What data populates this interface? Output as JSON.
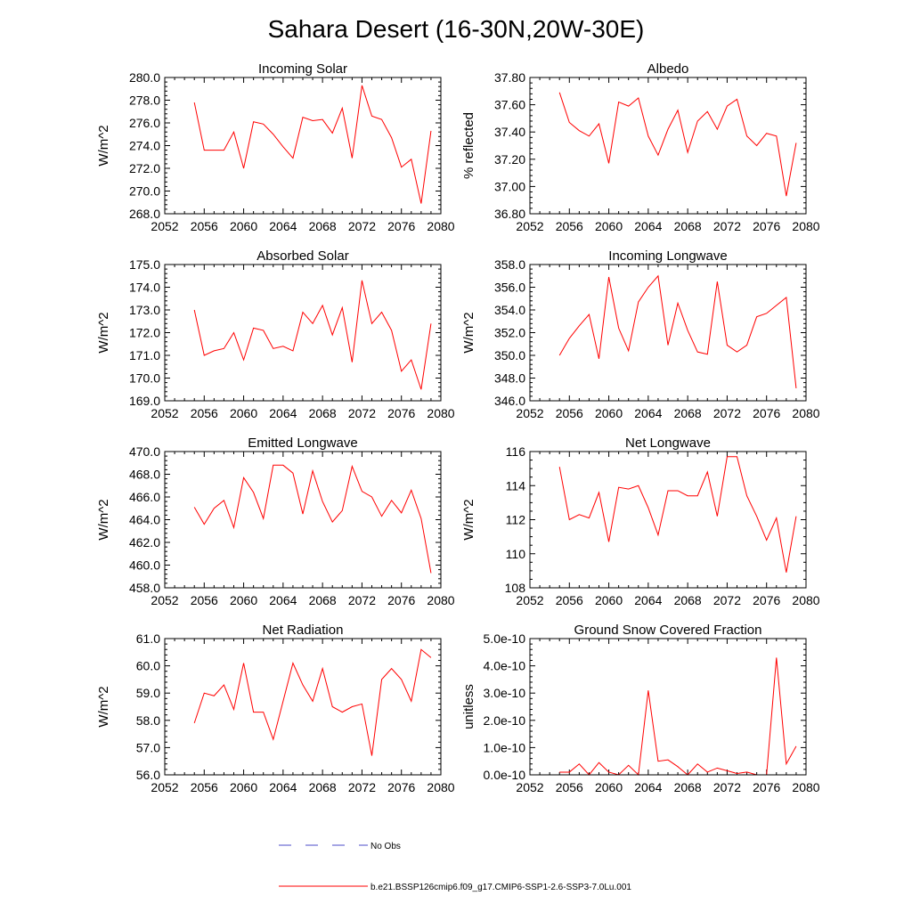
{
  "figure": {
    "title": "Sahara Desert (16-30N,20W-30E)"
  },
  "legend": {
    "entries": [
      {
        "label": "No Obs",
        "color": "#4b4bc8",
        "style": "dashed"
      },
      {
        "label": "b.e21.BSSP126cmip6.f09_g17.CMIP6-SSP1-2.6-SSP3-7.0Lu.001",
        "color": "#ff0000",
        "style": "solid"
      }
    ]
  },
  "chart_data": [
    {
      "type": "line",
      "title": "Incoming Solar",
      "ylabel": "W/m^2",
      "xlim": [
        2052,
        2080
      ],
      "ylim": [
        268,
        280
      ],
      "xticks": [
        2052,
        2056,
        2060,
        2064,
        2068,
        2072,
        2076,
        2080
      ],
      "xtick_labels": [
        "2052",
        "2056",
        "2060",
        "2064",
        "2068",
        "2072",
        "2076",
        "2080"
      ],
      "yticks": [
        268,
        270,
        272,
        274,
        276,
        278,
        280
      ],
      "ytick_labels": [
        "268.0",
        "270.0",
        "272.0",
        "274.0",
        "276.0",
        "278.0",
        "280.0"
      ],
      "x": [
        2055,
        2056,
        2057,
        2058,
        2059,
        2060,
        2061,
        2062,
        2063,
        2064,
        2065,
        2066,
        2067,
        2068,
        2069,
        2070,
        2071,
        2072,
        2073,
        2074,
        2075,
        2076,
        2077,
        2078,
        2079
      ],
      "series": [
        {
          "name": "b.e21.BSSP126cmip6.f09_g17.CMIP6-SSP1-2.6-SSP3-7.0Lu.001",
          "color": "#ff0000",
          "values": [
            277.8,
            273.6,
            273.6,
            273.6,
            275.2,
            272.0,
            276.1,
            275.9,
            275.0,
            273.9,
            272.9,
            276.5,
            276.2,
            276.3,
            275.1,
            277.3,
            272.9,
            279.3,
            276.6,
            276.3,
            274.7,
            272.1,
            272.8,
            268.9,
            275.3
          ]
        }
      ]
    },
    {
      "type": "line",
      "title": "Albedo",
      "ylabel": "% reflected",
      "xlim": [
        2052,
        2080
      ],
      "ylim": [
        36.8,
        37.8
      ],
      "xticks": [
        2052,
        2056,
        2060,
        2064,
        2068,
        2072,
        2076,
        2080
      ],
      "xtick_labels": [
        "2052",
        "2056",
        "2060",
        "2064",
        "2068",
        "2072",
        "2076",
        "2080"
      ],
      "yticks": [
        36.8,
        37.0,
        37.2,
        37.4,
        37.6,
        37.8
      ],
      "ytick_labels": [
        "36.80",
        "37.00",
        "37.20",
        "37.40",
        "37.60",
        "37.80"
      ],
      "x": [
        2055,
        2056,
        2057,
        2058,
        2059,
        2060,
        2061,
        2062,
        2063,
        2064,
        2065,
        2066,
        2067,
        2068,
        2069,
        2070,
        2071,
        2072,
        2073,
        2074,
        2075,
        2076,
        2077,
        2078,
        2079
      ],
      "series": [
        {
          "name": "b.e21.BSSP126cmip6.f09_g17.CMIP6-SSP1-2.6-SSP3-7.0Lu.001",
          "color": "#ff0000",
          "values": [
            37.69,
            37.47,
            37.41,
            37.37,
            37.46,
            37.17,
            37.62,
            37.59,
            37.65,
            37.37,
            37.23,
            37.42,
            37.56,
            37.25,
            37.48,
            37.55,
            37.42,
            37.59,
            37.64,
            37.37,
            37.3,
            37.39,
            37.37,
            36.93,
            37.32
          ]
        }
      ]
    },
    {
      "type": "line",
      "title": "Absorbed Solar",
      "ylabel": "W/m^2",
      "xlim": [
        2052,
        2080
      ],
      "ylim": [
        169,
        175
      ],
      "xticks": [
        2052,
        2056,
        2060,
        2064,
        2068,
        2072,
        2076,
        2080
      ],
      "xtick_labels": [
        "2052",
        "2056",
        "2060",
        "2064",
        "2068",
        "2072",
        "2076",
        "2080"
      ],
      "yticks": [
        169,
        170,
        171,
        172,
        173,
        174,
        175
      ],
      "ytick_labels": [
        "169.0",
        "170.0",
        "171.0",
        "172.0",
        "173.0",
        "174.0",
        "175.0"
      ],
      "x": [
        2055,
        2056,
        2057,
        2058,
        2059,
        2060,
        2061,
        2062,
        2063,
        2064,
        2065,
        2066,
        2067,
        2068,
        2069,
        2070,
        2071,
        2072,
        2073,
        2074,
        2075,
        2076,
        2077,
        2078,
        2079
      ],
      "series": [
        {
          "name": "b.e21.BSSP126cmip6.f09_g17.CMIP6-SSP1-2.6-SSP3-7.0Lu.001",
          "color": "#ff0000",
          "values": [
            173.0,
            171.0,
            171.2,
            171.3,
            172.0,
            170.8,
            172.2,
            172.1,
            171.3,
            171.4,
            171.2,
            172.9,
            172.4,
            173.2,
            171.9,
            173.1,
            170.7,
            174.3,
            172.4,
            172.9,
            172.1,
            170.3,
            170.8,
            169.5,
            172.4
          ]
        }
      ]
    },
    {
      "type": "line",
      "title": "Incoming Longwave",
      "ylabel": "W/m^2",
      "xlim": [
        2052,
        2080
      ],
      "ylim": [
        346,
        358
      ],
      "xticks": [
        2052,
        2056,
        2060,
        2064,
        2068,
        2072,
        2076,
        2080
      ],
      "xtick_labels": [
        "2052",
        "2056",
        "2060",
        "2064",
        "2068",
        "2072",
        "2076",
        "2080"
      ],
      "yticks": [
        346,
        348,
        350,
        352,
        354,
        356,
        358
      ],
      "ytick_labels": [
        "346.0",
        "348.0",
        "350.0",
        "352.0",
        "354.0",
        "356.0",
        "358.0"
      ],
      "x": [
        2055,
        2056,
        2057,
        2058,
        2059,
        2060,
        2061,
        2062,
        2063,
        2064,
        2065,
        2066,
        2067,
        2068,
        2069,
        2070,
        2071,
        2072,
        2073,
        2074,
        2075,
        2076,
        2077,
        2078,
        2079
      ],
      "series": [
        {
          "name": "b.e21.BSSP126cmip6.f09_g17.CMIP6-SSP1-2.6-SSP3-7.0Lu.001",
          "color": "#ff0000",
          "values": [
            350.0,
            351.5,
            352.6,
            353.6,
            349.7,
            356.9,
            352.4,
            350.4,
            354.7,
            356.0,
            357.0,
            350.9,
            354.6,
            352.2,
            350.3,
            350.1,
            356.5,
            350.9,
            350.3,
            350.9,
            353.4,
            353.7,
            354.4,
            355.1,
            347.1
          ]
        }
      ]
    },
    {
      "type": "line",
      "title": "Emitted Longwave",
      "ylabel": "W/m^2",
      "xlim": [
        2052,
        2080
      ],
      "ylim": [
        458,
        470
      ],
      "xticks": [
        2052,
        2056,
        2060,
        2064,
        2068,
        2072,
        2076,
        2080
      ],
      "xtick_labels": [
        "2052",
        "2056",
        "2060",
        "2064",
        "2068",
        "2072",
        "2076",
        "2080"
      ],
      "yticks": [
        458,
        460,
        462,
        464,
        466,
        468,
        470
      ],
      "ytick_labels": [
        "458.0",
        "460.0",
        "462.0",
        "464.0",
        "466.0",
        "468.0",
        "470.0"
      ],
      "x": [
        2055,
        2056,
        2057,
        2058,
        2059,
        2060,
        2061,
        2062,
        2063,
        2064,
        2065,
        2066,
        2067,
        2068,
        2069,
        2070,
        2071,
        2072,
        2073,
        2074,
        2075,
        2076,
        2077,
        2078,
        2079
      ],
      "series": [
        {
          "name": "b.e21.BSSP126cmip6.f09_g17.CMIP6-SSP1-2.6-SSP3-7.0Lu.001",
          "color": "#ff0000",
          "values": [
            465.1,
            463.6,
            465.0,
            465.7,
            463.3,
            467.7,
            466.4,
            464.1,
            468.8,
            468.8,
            468.1,
            464.5,
            468.3,
            465.6,
            463.8,
            464.8,
            468.7,
            466.5,
            466.0,
            464.3,
            465.7,
            464.6,
            466.6,
            464.1,
            459.3
          ]
        }
      ]
    },
    {
      "type": "line",
      "title": "Net Longwave",
      "ylabel": "W/m^2",
      "xlim": [
        2052,
        2080
      ],
      "ylim": [
        108,
        116
      ],
      "xticks": [
        2052,
        2056,
        2060,
        2064,
        2068,
        2072,
        2076,
        2080
      ],
      "xtick_labels": [
        "2052",
        "2056",
        "2060",
        "2064",
        "2068",
        "2072",
        "2076",
        "2080"
      ],
      "yticks": [
        108,
        110,
        112,
        114,
        116
      ],
      "ytick_labels": [
        "108",
        "110",
        "112",
        "114",
        "116"
      ],
      "x": [
        2055,
        2056,
        2057,
        2058,
        2059,
        2060,
        2061,
        2062,
        2063,
        2064,
        2065,
        2066,
        2067,
        2068,
        2069,
        2070,
        2071,
        2072,
        2073,
        2074,
        2075,
        2076,
        2077,
        2078,
        2079
      ],
      "series": [
        {
          "name": "b.e21.BSSP126cmip6.f09_g17.CMIP6-SSP1-2.6-SSP3-7.0Lu.001",
          "color": "#ff0000",
          "values": [
            115.1,
            112.0,
            112.3,
            112.1,
            113.6,
            110.7,
            113.9,
            113.8,
            114.0,
            112.7,
            111.1,
            113.7,
            113.7,
            113.4,
            113.4,
            114.8,
            112.2,
            115.7,
            115.7,
            113.4,
            112.2,
            110.8,
            112.1,
            108.9,
            112.2
          ]
        }
      ]
    },
    {
      "type": "line",
      "title": "Net Radiation",
      "ylabel": "W/m^2",
      "xlim": [
        2052,
        2080
      ],
      "ylim": [
        56,
        61
      ],
      "xticks": [
        2052,
        2056,
        2060,
        2064,
        2068,
        2072,
        2076,
        2080
      ],
      "xtick_labels": [
        "2052",
        "2056",
        "2060",
        "2064",
        "2068",
        "2072",
        "2076",
        "2080"
      ],
      "yticks": [
        56,
        57,
        58,
        59,
        60,
        61
      ],
      "ytick_labels": [
        "56.0",
        "57.0",
        "58.0",
        "59.0",
        "60.0",
        "61.0"
      ],
      "x": [
        2055,
        2056,
        2057,
        2058,
        2059,
        2060,
        2061,
        2062,
        2063,
        2064,
        2065,
        2066,
        2067,
        2068,
        2069,
        2070,
        2071,
        2072,
        2073,
        2074,
        2075,
        2076,
        2077,
        2078,
        2079
      ],
      "series": [
        {
          "name": "b.e21.BSSP126cmip6.f09_g17.CMIP6-SSP1-2.6-SSP3-7.0Lu.001",
          "color": "#ff0000",
          "values": [
            57.9,
            59.0,
            58.9,
            59.3,
            58.4,
            60.1,
            58.3,
            58.3,
            57.3,
            58.7,
            60.1,
            59.3,
            58.7,
            59.9,
            58.5,
            58.3,
            58.5,
            58.6,
            56.7,
            59.5,
            59.9,
            59.5,
            58.7,
            60.6,
            60.3
          ]
        }
      ]
    },
    {
      "type": "line",
      "title": "Ground Snow Covered Fraction",
      "ylabel": "unitless",
      "xlim": [
        2052,
        2080
      ],
      "ylim": [
        0,
        5e-10
      ],
      "xticks": [
        2052,
        2056,
        2060,
        2064,
        2068,
        2072,
        2076,
        2080
      ],
      "xtick_labels": [
        "2052",
        "2056",
        "2060",
        "2064",
        "2068",
        "2072",
        "2076",
        "2080"
      ],
      "yticks": [
        0,
        1e-10,
        2e-10,
        3e-10,
        4e-10,
        5e-10
      ],
      "ytick_labels": [
        "0.0e-10",
        "1.0e-10",
        "2.0e-10",
        "3.0e-10",
        "4.0e-10",
        "5.0e-10"
      ],
      "x": [
        2055,
        2056,
        2057,
        2058,
        2059,
        2060,
        2061,
        2062,
        2063,
        2064,
        2065,
        2066,
        2067,
        2068,
        2069,
        2070,
        2071,
        2072,
        2073,
        2074,
        2075,
        2076,
        2077,
        2078,
        2079
      ],
      "series": [
        {
          "name": "b.e21.BSSP126cmip6.f09_g17.CMIP6-SSP1-2.6-SSP3-7.0Lu.001",
          "color": "#ff0000",
          "values": [
            1e-11,
            1e-11,
            4e-11,
            0,
            4.5e-11,
            1e-11,
            0,
            3.5e-11,
            0,
            3.1e-10,
            5e-11,
            5.5e-11,
            3e-11,
            0,
            4e-11,
            1e-11,
            2.5e-11,
            1.5e-11,
            5e-12,
            1e-11,
            0,
            0,
            4.3e-10,
            4e-11,
            1.05e-10
          ]
        }
      ]
    }
  ]
}
